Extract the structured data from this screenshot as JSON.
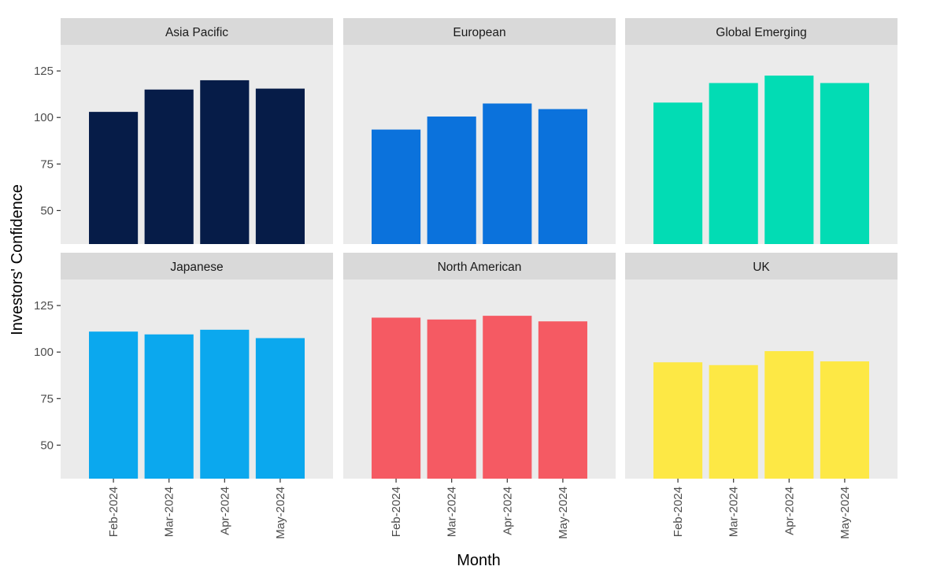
{
  "chart_data": {
    "type": "bar",
    "facet_layout": "2 rows x 3 columns",
    "xlabel": "Month",
    "ylabel": "Investors' Confidence",
    "categories": [
      "Feb-2024",
      "Mar-2024",
      "Apr-2024",
      "May-2024"
    ],
    "ylim": [
      32,
      139
    ],
    "y_ticks": [
      50,
      75,
      100,
      125
    ],
    "panel_background": "#ebebeb",
    "strip_background": "#d9d9d9",
    "grid": false,
    "legend": "none",
    "series": [
      {
        "name": "Asia Pacific",
        "color": "#061c48",
        "values": [
          103,
          115,
          120,
          115.5
        ]
      },
      {
        "name": "European",
        "color": "#0b72dc",
        "values": [
          93.5,
          100.5,
          107.5,
          104.5
        ]
      },
      {
        "name": "Global Emerging",
        "color": "#02dcb4",
        "values": [
          108,
          118.5,
          122.5,
          118.5
        ]
      },
      {
        "name": "Japanese",
        "color": "#0ba8ee",
        "values": [
          111,
          109.5,
          112,
          107.5
        ]
      },
      {
        "name": "North American",
        "color": "#f55a63",
        "values": [
          118.5,
          117.5,
          119.5,
          116.5
        ]
      },
      {
        "name": "UK",
        "color": "#fde845",
        "values": [
          94.5,
          93,
          100.5,
          95
        ]
      }
    ]
  }
}
